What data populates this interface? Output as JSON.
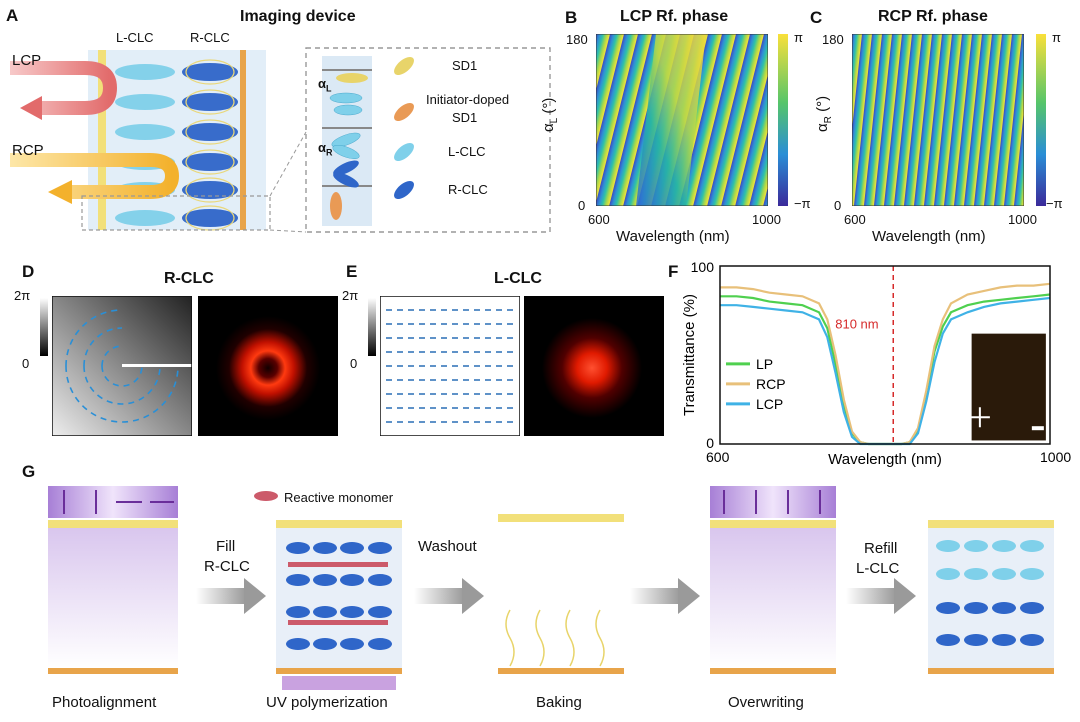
{
  "panels": {
    "a": "A",
    "b": "B",
    "c": "C",
    "d": "D",
    "e": "E",
    "f": "F",
    "g": "G"
  },
  "panel_a": {
    "title": "Imaging device",
    "lclc": "L-CLC",
    "rclc": "R-CLC",
    "lcp": "LCP",
    "rcp": "RCP",
    "alpha_l": "α",
    "alpha_l_sub": "L",
    "alpha_r": "α",
    "alpha_r_sub": "R",
    "legend": [
      "SD1",
      "Initiator-doped",
      "SD1",
      "L-CLC",
      "R-CLC"
    ],
    "colors": {
      "lclc": "#7fd0ea",
      "rclc": "#2f66c9",
      "sd1": "#e8d46a",
      "doped": "#e99a55"
    }
  },
  "panel_b": {
    "title": "LCP Rf. phase",
    "ylabel": "α",
    "ylabel_sub": "L",
    "ylabel_unit": "(°)",
    "xlabel": "Wavelength (nm)",
    "y_ticks": [
      "180",
      "0"
    ],
    "x_ticks": [
      "600",
      "1000"
    ],
    "cbar_ticks": [
      "π",
      "−π"
    ]
  },
  "panel_c": {
    "title": "RCP Rf. phase",
    "ylabel": "α",
    "ylabel_sub": "R",
    "ylabel_unit": "(°)",
    "xlabel": "Wavelength (nm)",
    "y_ticks": [
      "180",
      "0"
    ],
    "x_ticks": [
      "600",
      "1000"
    ],
    "cbar_ticks": [
      "π",
      "−π"
    ]
  },
  "panel_d": {
    "title": "R-CLC",
    "cbar_ticks": [
      "2π",
      "0"
    ]
  },
  "panel_e": {
    "title": "L-CLC",
    "cbar_ticks": [
      "2π",
      "0"
    ]
  },
  "chart_data": {
    "type": "line",
    "title": "",
    "xlabel": "Wavelength (nm)",
    "ylabel": "Transmittance (%)",
    "xlim": [
      600,
      1000
    ],
    "ylim": [
      0,
      100
    ],
    "x_ticks": [
      "600",
      "1000"
    ],
    "y_ticks": [
      "100",
      "0"
    ],
    "annotation": "810 nm",
    "annotation_x": 810,
    "legend": [
      "LP",
      "RCP",
      "LCP"
    ],
    "series": [
      {
        "name": "LP",
        "color": "#4fd04f",
        "x": [
          600,
          620,
          640,
          660,
          680,
          700,
          720,
          730,
          740,
          750,
          760,
          770,
          780,
          790,
          800,
          810,
          820,
          830,
          840,
          850,
          860,
          870,
          880,
          900,
          920,
          940,
          960,
          980,
          1000
        ],
        "y": [
          83,
          83,
          82,
          80,
          79,
          78,
          74,
          65,
          45,
          22,
          6,
          1,
          0,
          0,
          0,
          0,
          0,
          1,
          8,
          28,
          52,
          66,
          74,
          78,
          80,
          81,
          82,
          83,
          84
        ]
      },
      {
        "name": "RCP",
        "color": "#e8c07a",
        "x": [
          600,
          620,
          640,
          660,
          680,
          700,
          720,
          730,
          740,
          750,
          760,
          770,
          780,
          790,
          800,
          810,
          820,
          830,
          840,
          850,
          860,
          870,
          880,
          900,
          920,
          940,
          960,
          980,
          1000
        ],
        "y": [
          88,
          88,
          87,
          85,
          84,
          83,
          79,
          70,
          50,
          25,
          7,
          1,
          0,
          0,
          0,
          0,
          0,
          1,
          9,
          30,
          55,
          70,
          79,
          84,
          86,
          88,
          89,
          89,
          90
        ]
      },
      {
        "name": "LCP",
        "color": "#3fb2e6",
        "x": [
          600,
          620,
          640,
          660,
          680,
          700,
          720,
          730,
          740,
          750,
          760,
          770,
          780,
          790,
          800,
          810,
          820,
          830,
          840,
          850,
          860,
          870,
          880,
          900,
          920,
          940,
          960,
          980,
          1000
        ],
        "y": [
          78,
          78,
          77,
          76,
          75,
          74,
          70,
          60,
          40,
          18,
          4,
          0,
          0,
          0,
          0,
          0,
          0,
          0,
          6,
          24,
          46,
          62,
          70,
          74,
          77,
          79,
          80,
          81,
          82
        ]
      }
    ]
  },
  "panel_g": {
    "reactive_monomer": "Reactive monomer",
    "step1": "Fill",
    "step1b": "R-CLC",
    "step2": "Washout",
    "step3": "Refill",
    "step3b": "L-CLC",
    "stages": [
      "Photoalignment",
      "UV polymerization",
      "Baking",
      "Overwriting",
      ""
    ]
  }
}
